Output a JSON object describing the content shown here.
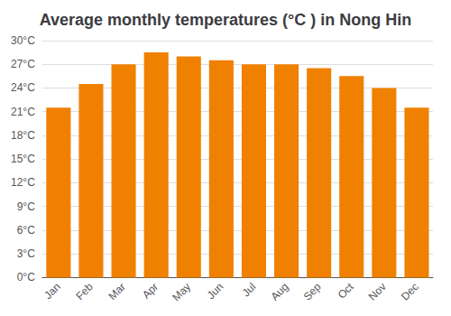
{
  "chart_data": {
    "type": "bar",
    "title": "Average monthly temperatures (°C ) in Nong Hin",
    "categories": [
      "Jan",
      "Feb",
      "Mar",
      "Apr",
      "May",
      "Jun",
      "Jul",
      "Aug",
      "Sep",
      "Oct",
      "Nov",
      "Dec"
    ],
    "values": [
      21.5,
      24.5,
      27.0,
      28.5,
      28.0,
      27.5,
      27.0,
      27.0,
      26.5,
      25.5,
      24.0,
      21.5
    ],
    "color": "#F08000",
    "ylim": [
      0,
      30
    ],
    "yticks": [
      {
        "value": 0,
        "label": "0°C"
      },
      {
        "value": 3,
        "label": "3°C"
      },
      {
        "value": 6,
        "label": "6°C"
      },
      {
        "value": 9,
        "label": "9°C"
      },
      {
        "value": 12,
        "label": "12°C"
      },
      {
        "value": 15,
        "label": "15°C"
      },
      {
        "value": 18,
        "label": "18°C"
      },
      {
        "value": 21,
        "label": "21°C"
      },
      {
        "value": 24,
        "label": "24°C"
      },
      {
        "value": 27,
        "label": "27°C"
      },
      {
        "value": 30,
        "label": "30°C"
      }
    ],
    "grid": true
  }
}
